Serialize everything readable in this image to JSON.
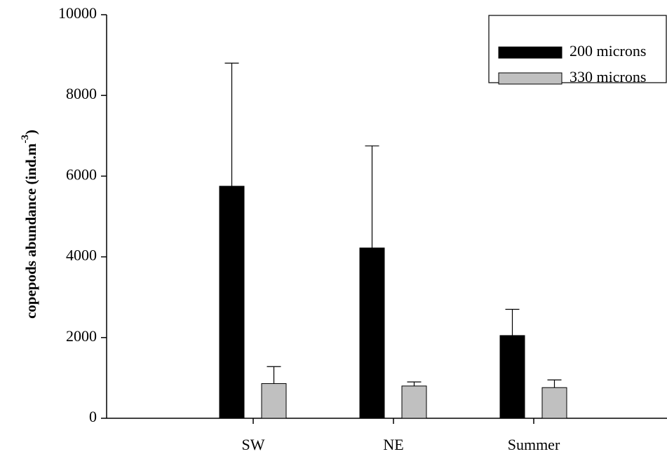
{
  "chart_data": {
    "type": "bar",
    "ylabel": "copepods abundance (ind.m",
    "ylabel_sup": "-3",
    "ylabel_end": ")",
    "categories": [
      "SW",
      "NE",
      "Summer"
    ],
    "series": [
      {
        "name": "200 microns",
        "color": "#000000",
        "values": [
          5750,
          4220,
          2050
        ],
        "errors": [
          3050,
          2530,
          650
        ]
      },
      {
        "name": "330 microns",
        "color": "#c0c0c0",
        "values": [
          860,
          800,
          760
        ],
        "errors": [
          420,
          100,
          190
        ]
      }
    ],
    "ylim": [
      0,
      10000
    ],
    "yticks": [
      0,
      2000,
      4000,
      6000,
      8000,
      10000
    ],
    "legend": "upper right"
  }
}
